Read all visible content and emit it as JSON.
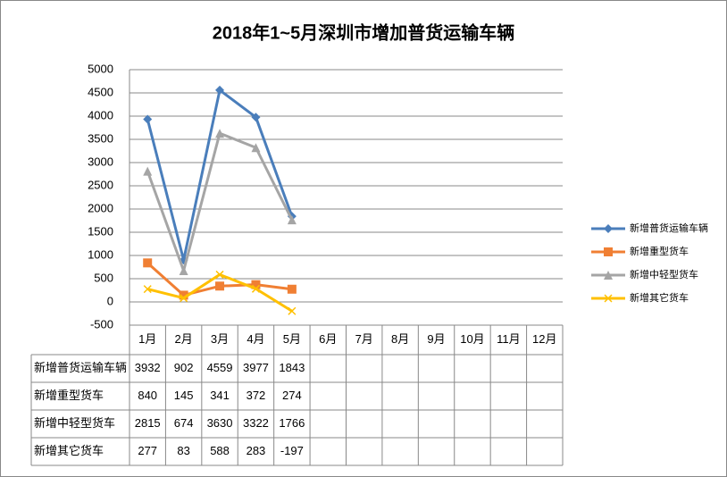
{
  "chart_data": {
    "type": "line",
    "title": "2018年1~5月深圳市增加普货运输车辆",
    "categories": [
      "1月",
      "2月",
      "3月",
      "4月",
      "5月",
      "6月",
      "7月",
      "8月",
      "9月",
      "10月",
      "11月",
      "12月"
    ],
    "series": [
      {
        "name": "新增普货运输车辆",
        "color": "#4a7ebb",
        "marker": "diamond",
        "values": [
          3932,
          902,
          4559,
          3977,
          1843,
          null,
          null,
          null,
          null,
          null,
          null,
          null
        ]
      },
      {
        "name": "新增重型货车",
        "color": "#f07f33",
        "marker": "square",
        "values": [
          840,
          145,
          341,
          372,
          274,
          null,
          null,
          null,
          null,
          null,
          null,
          null
        ]
      },
      {
        "name": "新增中轻型货车",
        "color": "#a5a5a5",
        "marker": "triangle",
        "values": [
          2815,
          674,
          3630,
          3322,
          1766,
          null,
          null,
          null,
          null,
          null,
          null,
          null
        ]
      },
      {
        "name": "新增其它货车",
        "color": "#ffc000",
        "marker": "x",
        "values": [
          277,
          83,
          588,
          283,
          -197,
          null,
          null,
          null,
          null,
          null,
          null,
          null
        ]
      }
    ],
    "ylim": [
      -500,
      5000
    ],
    "yticks": [
      -500,
      0,
      500,
      1000,
      1500,
      2000,
      2500,
      3000,
      3500,
      4000,
      4500,
      5000
    ],
    "grid": true,
    "legend": "right",
    "data_table": true
  }
}
